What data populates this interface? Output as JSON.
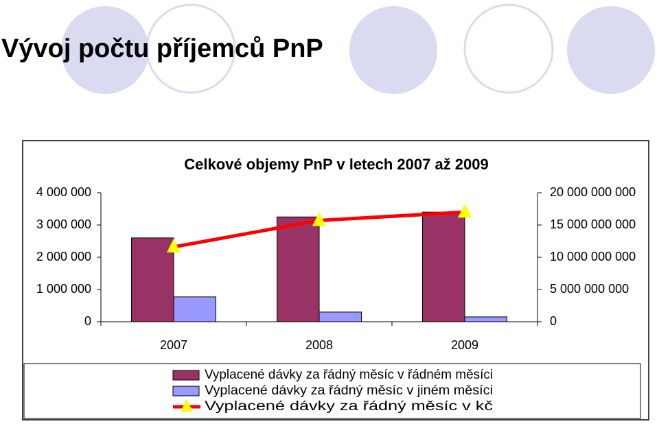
{
  "title": "Vývoj počtu příjemců PnP",
  "chart_data": {
    "type": "bar",
    "title": "Celkové objemy PnP v letech 2007 až 2009",
    "categories": [
      "2007",
      "2008",
      "2009"
    ],
    "series": [
      {
        "name": "Vyplacené dávky za řádný měsíc v řádném měsíci",
        "color": "#993366",
        "values": [
          2600000,
          3250000,
          3400000
        ]
      },
      {
        "name": "Vyplacené dávky za řádný měsíc v jiném měsíci",
        "color": "#9999ff",
        "values": [
          770000,
          300000,
          150000
        ]
      },
      {
        "name": "Vyplacené dávky za řádný měsíc v kč",
        "type": "line",
        "axis": "y2",
        "color": "#ff0000",
        "marker_color": "#ffff00",
        "values": [
          11600000000,
          15700000000,
          17000000000
        ]
      }
    ],
    "ylim": [
      0,
      4000000
    ],
    "yticks": [
      0,
      {
        "value": 1000000,
        "label": "1 000 000"
      },
      {
        "value": 2000000,
        "label": "2 000 000"
      },
      {
        "value": 3000000,
        "label": "3 000 000"
      },
      {
        "value": 4000000,
        "label": "4 000 000"
      }
    ],
    "y2lim": [
      0,
      20000000000
    ],
    "y2ticks": [
      0,
      {
        "value": 5000000000,
        "label": "5 000 000 000"
      },
      {
        "value": 10000000000,
        "label": "10 000 000 000"
      },
      {
        "value": 15000000000,
        "label": "15 000 000 000"
      },
      {
        "value": 20000000000,
        "label": "20 000 000 000"
      }
    ],
    "grid": false,
    "legend": "bottom"
  }
}
